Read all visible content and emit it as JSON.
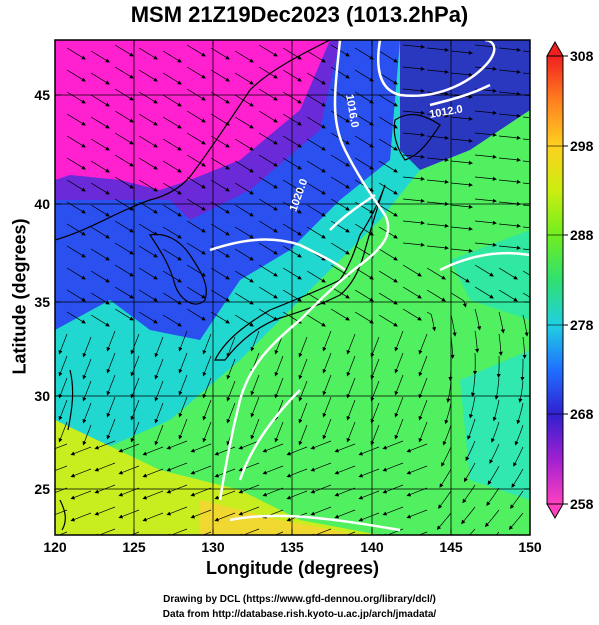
{
  "title": "MSM 21Z19Dec2023 (1013.2hPa)",
  "x_axis": {
    "label": "Longitude (degrees)",
    "range": [
      120,
      150
    ],
    "ticks": [
      "120",
      "125",
      "130",
      "135",
      "140",
      "145",
      "150"
    ]
  },
  "y_axis": {
    "label": "Latitude  (degrees)",
    "range": [
      22.5,
      47.5
    ],
    "ticks": [
      "25",
      "30",
      "35",
      "40",
      "45"
    ]
  },
  "colorbar": {
    "range": [
      258,
      308
    ],
    "ticks": [
      "258",
      "268",
      "278",
      "288",
      "298",
      "308"
    ],
    "colors": [
      "#ff40c0",
      "#a020d0",
      "#3020d0",
      "#2070ff",
      "#20d0e0",
      "#30e070",
      "#70ee20",
      "#ccee10",
      "#ffd020",
      "#ff8020",
      "#f02020"
    ]
  },
  "contour_labels": [
    "1016.0",
    "1012.0",
    "1020.0"
  ],
  "credits": {
    "line1": "Drawing by DCL (https://www.gfd-dennou.org/library/dcl/)",
    "line2": "Data from http://database.rish.kyoto-u.ac.jp/arch/jmadata/"
  }
}
